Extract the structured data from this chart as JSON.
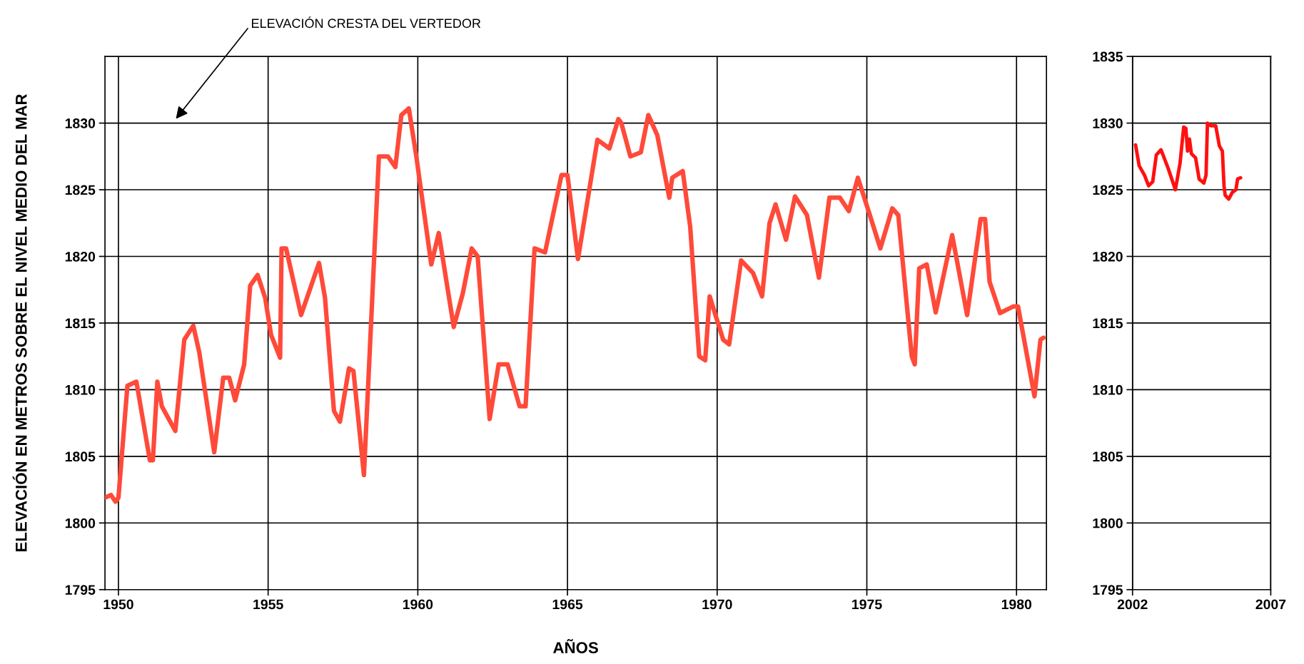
{
  "chart_data": [
    {
      "type": "line",
      "xlabel": "AÑOS",
      "ylabel": "ELEVACIÓN EN METROS SOBRE EL NIVEL MEDIO DEL MAR",
      "color": "#ff4a3a",
      "grid": true,
      "xlim": [
        1949.55,
        1981.0
      ],
      "ylim": [
        1795,
        1835
      ],
      "xticks": [
        1950,
        1955,
        1960,
        1965,
        1970,
        1975,
        1980
      ],
      "yticks": [
        1795,
        1800,
        1805,
        1810,
        1815,
        1820,
        1825,
        1830
      ],
      "annotations": [
        "ELEVACIÓN CRESTA DEL VERTEDOR"
      ],
      "x": [
        1949.56,
        1949.75,
        1949.9,
        1950.0,
        1950.3,
        1950.6,
        1951.05,
        1951.15,
        1951.3,
        1951.45,
        1951.9,
        1952.2,
        1952.5,
        1952.7,
        1953.2,
        1953.5,
        1953.7,
        1953.9,
        1954.2,
        1954.4,
        1954.65,
        1954.9,
        1955.1,
        1955.4,
        1955.45,
        1955.6,
        1956.1,
        1956.7,
        1956.9,
        1957.2,
        1957.4,
        1957.7,
        1957.85,
        1958.0,
        1958.2,
        1958.4,
        1958.7,
        1959.0,
        1959.25,
        1959.45,
        1959.7,
        1959.95,
        1960.45,
        1960.7,
        1961.2,
        1961.5,
        1961.8,
        1962.0,
        1962.4,
        1962.7,
        1963.0,
        1963.4,
        1963.6,
        1963.9,
        1964.25,
        1964.8,
        1965.0,
        1965.35,
        1966.0,
        1966.4,
        1966.7,
        1966.8,
        1967.1,
        1967.45,
        1967.7,
        1968.0,
        1968.4,
        1968.5,
        1968.85,
        1969.1,
        1969.4,
        1969.6,
        1969.75,
        1970.2,
        1970.4,
        1970.8,
        1971.2,
        1971.5,
        1971.75,
        1971.95,
        1972.3,
        1972.6,
        1973.0,
        1973.4,
        1973.75,
        1974.1,
        1974.4,
        1974.7,
        1975.1,
        1975.45,
        1975.85,
        1976.05,
        1976.5,
        1976.6,
        1976.75,
        1977.0,
        1977.3,
        1977.85,
        1978.35,
        1978.8,
        1978.95,
        1979.1,
        1979.45,
        1979.9,
        1980.05,
        1980.2,
        1980.6,
        1980.8,
        1980.9
      ],
      "values": [
        1801.9,
        1802.1,
        1801.6,
        1801.9,
        1810.3,
        1810.6,
        1804.7,
        1804.7,
        1810.6,
        1808.75,
        1806.9,
        1813.75,
        1814.8,
        1812.8,
        1805.3,
        1810.9,
        1810.9,
        1809.2,
        1811.9,
        1817.8,
        1818.6,
        1816.9,
        1814.1,
        1812.4,
        1820.6,
        1820.6,
        1815.6,
        1819.5,
        1816.9,
        1808.4,
        1807.6,
        1811.6,
        1811.4,
        1808.1,
        1803.6,
        1813.1,
        1827.5,
        1827.5,
        1826.7,
        1830.6,
        1831.1,
        1827.5,
        1819.4,
        1821.75,
        1814.7,
        1817.2,
        1820.6,
        1820.0,
        1807.8,
        1811.9,
        1811.9,
        1808.75,
        1808.75,
        1820.6,
        1820.3,
        1826.1,
        1826.1,
        1819.8,
        1828.75,
        1828.1,
        1830.3,
        1830.0,
        1827.5,
        1827.8,
        1830.6,
        1829.1,
        1824.4,
        1825.9,
        1826.4,
        1822.2,
        1812.5,
        1812.2,
        1817.0,
        1813.75,
        1813.4,
        1819.7,
        1818.75,
        1817.0,
        1822.5,
        1823.9,
        1821.25,
        1824.5,
        1823.1,
        1818.4,
        1824.4,
        1824.4,
        1823.4,
        1825.9,
        1823.1,
        1820.6,
        1823.6,
        1823.1,
        1812.5,
        1811.9,
        1819.1,
        1819.4,
        1815.8,
        1821.6,
        1815.6,
        1822.8,
        1822.8,
        1818.1,
        1815.75,
        1816.25,
        1816.25,
        1814.4,
        1809.5,
        1813.75,
        1813.9
      ]
    },
    {
      "type": "line",
      "color": "#ff1010",
      "grid": true,
      "xlim": [
        2002,
        2007
      ],
      "ylim": [
        1795,
        1835
      ],
      "xticks": [
        2002,
        2007
      ],
      "yticks": [
        1795,
        1800,
        1805,
        1810,
        1815,
        1820,
        1825,
        1830,
        1835
      ],
      "x": [
        2002.11,
        2002.24,
        2002.43,
        2002.58,
        2002.73,
        2002.86,
        2003.03,
        2003.29,
        2003.55,
        2003.72,
        2003.85,
        2003.93,
        2003.99,
        2004.06,
        2004.13,
        2004.28,
        2004.41,
        2004.58,
        2004.66,
        2004.71,
        2004.84,
        2005.01,
        2005.14,
        2005.25,
        2005.31,
        2005.35,
        2005.48,
        2005.61,
        2005.74,
        2005.8,
        2005.91
      ],
      "values": [
        1828.36,
        1826.8,
        1826.1,
        1825.3,
        1825.6,
        1827.6,
        1828.0,
        1826.6,
        1825.0,
        1827.0,
        1829.7,
        1829.6,
        1827.9,
        1828.8,
        1827.7,
        1827.4,
        1825.8,
        1825.5,
        1826.1,
        1830.0,
        1829.8,
        1829.8,
        1828.3,
        1827.9,
        1825.3,
        1824.6,
        1824.3,
        1824.8,
        1825.0,
        1825.8,
        1825.9
      ]
    }
  ]
}
